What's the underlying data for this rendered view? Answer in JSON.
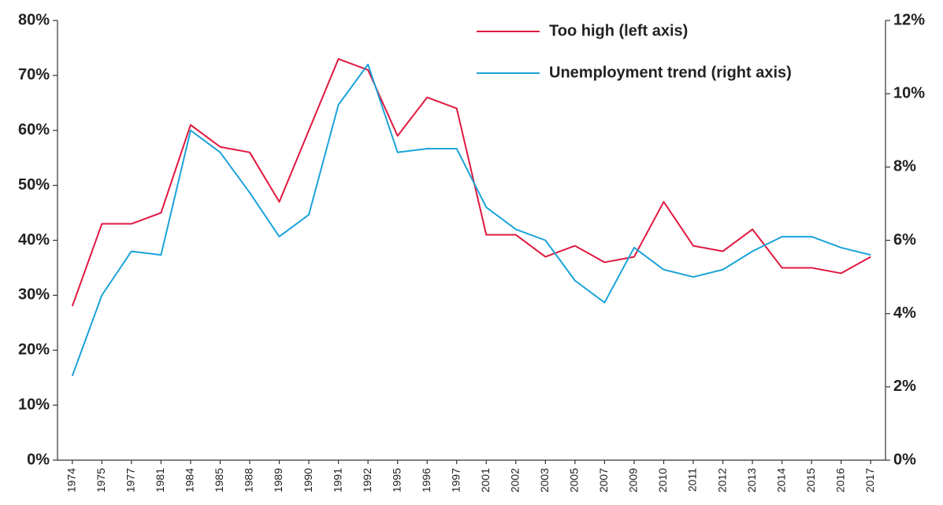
{
  "chart_data": {
    "type": "line",
    "categories": [
      "1974",
      "1975",
      "1977",
      "1981",
      "1984",
      "1985",
      "1988",
      "1989",
      "1990",
      "1991",
      "1992",
      "1995",
      "1996",
      "1997",
      "2001",
      "2002",
      "2003",
      "2005",
      "2007",
      "2009",
      "2010",
      "2011",
      "2012",
      "2013",
      "2014",
      "2015",
      "2016",
      "2017"
    ],
    "series": [
      {
        "name": "Too high (left axis)",
        "color": "#e0173f",
        "values": [
          28,
          43,
          43,
          45,
          61,
          57,
          56,
          47,
          60,
          73,
          71,
          59,
          66,
          64,
          41,
          41,
          37,
          39,
          36,
          37,
          47,
          39,
          38,
          42,
          35,
          35,
          34,
          37
        ]
      },
      {
        "name": "Unemployment trend (right axis)",
        "color": "#1aa3d9",
        "axis": "y2",
        "values": [
          2.3,
          4.5,
          5.7,
          5.6,
          9.0,
          8.4,
          7.3,
          6.1,
          6.7,
          9.7,
          10.8,
          8.4,
          8.5,
          8.5,
          6.9,
          6.3,
          6.0,
          4.9,
          4.3,
          5.8,
          5.2,
          5.0,
          5.2,
          5.7,
          6.1,
          6.1,
          5.8,
          5.6
        ]
      }
    ],
    "ylim": [
      0,
      80
    ],
    "yticks": [
      {
        "value": 0,
        "label": "0%"
      },
      {
        "value": 10,
        "label": "10%"
      },
      {
        "value": 20,
        "label": "20%"
      },
      {
        "value": 30,
        "label": "30%"
      },
      {
        "value": 40,
        "label": "40%"
      },
      {
        "value": 50,
        "label": "50%"
      },
      {
        "value": 60,
        "label": "60%"
      },
      {
        "value": 70,
        "label": "70%"
      },
      {
        "value": 80,
        "label": "80%"
      }
    ],
    "y2lim": [
      0,
      12
    ],
    "y2ticks": [
      {
        "value": 0,
        "label": "0%"
      },
      {
        "value": 2,
        "label": "2%"
      },
      {
        "value": 4,
        "label": "4%"
      },
      {
        "value": 6,
        "label": "6%"
      },
      {
        "value": 8,
        "label": "8%"
      },
      {
        "value": 10,
        "label": "10%"
      },
      {
        "value": 12,
        "label": "12%"
      }
    ],
    "grid": false
  }
}
